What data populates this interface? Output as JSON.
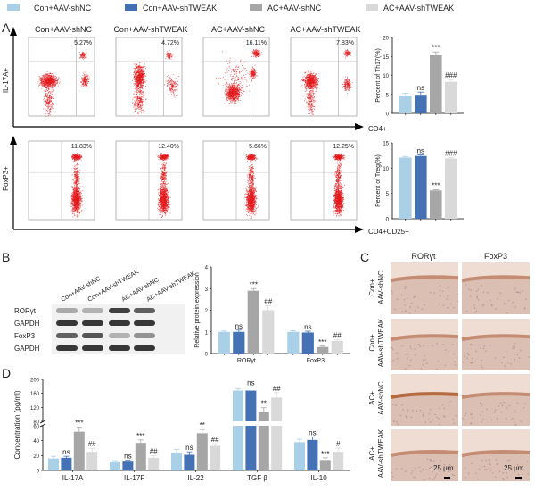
{
  "legend": [
    {
      "label": "Con+AAV-shNC",
      "color": "#a9d0e6"
    },
    {
      "label": "Con+AAV-shTWEAK",
      "color": "#4472b4"
    },
    {
      "label": "AC+AAV-shNC",
      "color": "#a6a6a6"
    },
    {
      "label": "AC+AAV-shTWEAK",
      "color": "#d9d9d9"
    }
  ],
  "panel_labels": {
    "a": "A",
    "b": "B",
    "c": "C",
    "d": "D"
  },
  "panelA": {
    "row1": {
      "y_axis": "IL-17A+",
      "x_axis": "CD4+",
      "percents": [
        "5.27%",
        "4.72%",
        "16.11%",
        "7.83%"
      ]
    },
    "row2": {
      "y_axis": "FoxP3+",
      "x_axis": "CD4+CD25+",
      "percents": [
        "11.83%",
        "12.40%",
        "5.66%",
        "12.25%"
      ]
    },
    "titles": [
      "Con+AAV-shNC",
      "Con+AAV-shTWEAK",
      "AC+AAV-shNC",
      "AC+AAV-shTWEAK"
    ]
  },
  "panelB": {
    "lane_labels": [
      "Con+AAV-shNC",
      "Con+AAV-shTWEAK",
      "AC+AAV-shNC",
      "AC+AAV-shTWEAK"
    ],
    "band_labels": [
      "RORγt",
      "GAPDH",
      "FoxP3",
      "GAPDH"
    ]
  },
  "panelC": {
    "columns": [
      "RORγt",
      "FoxP3"
    ],
    "rows": [
      [
        "Con+",
        "AAV-shNC"
      ],
      [
        "Con+",
        "AAV-shTWEAK"
      ],
      [
        "AC+",
        "AAV-shNC"
      ],
      [
        "AC+",
        "AAV-shTWEAK"
      ]
    ],
    "scale_bar": "25 μm"
  },
  "chart_data": [
    {
      "id": "th17",
      "type": "bar",
      "ylabel": "Percent of Th17(%)",
      "ylim": [
        0,
        20
      ],
      "yticks": [
        "0",
        "5",
        "10",
        "15",
        "20"
      ],
      "categories": [
        ""
      ],
      "series_values": [
        [
          4.7,
          4.9,
          15.3,
          8.3
        ]
      ],
      "errors": [
        [
          0.6,
          0.7,
          0.9,
          0.6
        ]
      ],
      "annotations": [
        [
          "",
          "ns",
          "***",
          "###"
        ]
      ]
    },
    {
      "id": "treg",
      "type": "bar",
      "ylabel": "Percent of Treg(%)",
      "ylim": [
        0,
        15
      ],
      "yticks": [
        "0",
        "5",
        "10",
        "15"
      ],
      "categories": [
        ""
      ],
      "series_values": [
        [
          12.1,
          12.4,
          5.6,
          11.9
        ]
      ],
      "errors": [
        [
          0.2,
          0.2,
          0.15,
          0.2
        ]
      ],
      "annotations": [
        [
          "",
          "ns",
          "***",
          "###"
        ]
      ]
    },
    {
      "id": "western",
      "type": "bar",
      "ylabel": "Relative protein expression",
      "ylim": [
        0,
        4
      ],
      "yticks": [
        "0",
        "1",
        "2",
        "3",
        "4"
      ],
      "categories": [
        "RORγt",
        "FoxP3"
      ],
      "series_values": [
        [
          1.0,
          1.0,
          2.9,
          2.0
        ],
        [
          1.0,
          0.97,
          0.3,
          0.58
        ]
      ],
      "errors": [
        [
          0.04,
          0.08,
          0.1,
          0.2
        ],
        [
          0.05,
          0.06,
          0.04,
          0.05
        ]
      ],
      "annotations": [
        [
          "",
          "ns",
          "***",
          "##"
        ],
        [
          "",
          "ns",
          "***",
          "##"
        ]
      ]
    },
    {
      "id": "elisa",
      "type": "bar",
      "ylabel": "Concentration (pg/ml)",
      "broken_axis": [
        [
          0,
          60
        ],
        [
          80,
          200
        ]
      ],
      "yticks_lower": [
        "0",
        "20",
        "40",
        "60"
      ],
      "yticks_upper": [
        "80",
        "120",
        "160",
        "200"
      ],
      "categories": [
        "IL-17A",
        "IL-17F",
        "IL-22",
        "TGF β",
        "IL-10"
      ],
      "series_values": [
        [
          16,
          17,
          52,
          25
        ],
        [
          12,
          13,
          37,
          17
        ],
        [
          24,
          21,
          50,
          33
        ],
        [
          168,
          168,
          107,
          148
        ],
        [
          38,
          41,
          14,
          25
        ]
      ],
      "errors": [
        [
          3,
          2,
          6,
          5
        ],
        [
          1,
          1,
          4,
          3
        ],
        [
          4,
          4,
          5,
          3
        ],
        [
          6,
          10,
          12,
          14
        ],
        [
          4,
          4,
          3,
          5
        ]
      ],
      "annotations": [
        [
          "",
          "ns",
          "***",
          "##"
        ],
        [
          "",
          "ns",
          "***",
          "##"
        ],
        [
          "",
          "ns",
          "**",
          "##"
        ],
        [
          "",
          "ns",
          "**",
          "##"
        ],
        [
          "",
          "ns",
          "***",
          "#"
        ]
      ]
    }
  ]
}
